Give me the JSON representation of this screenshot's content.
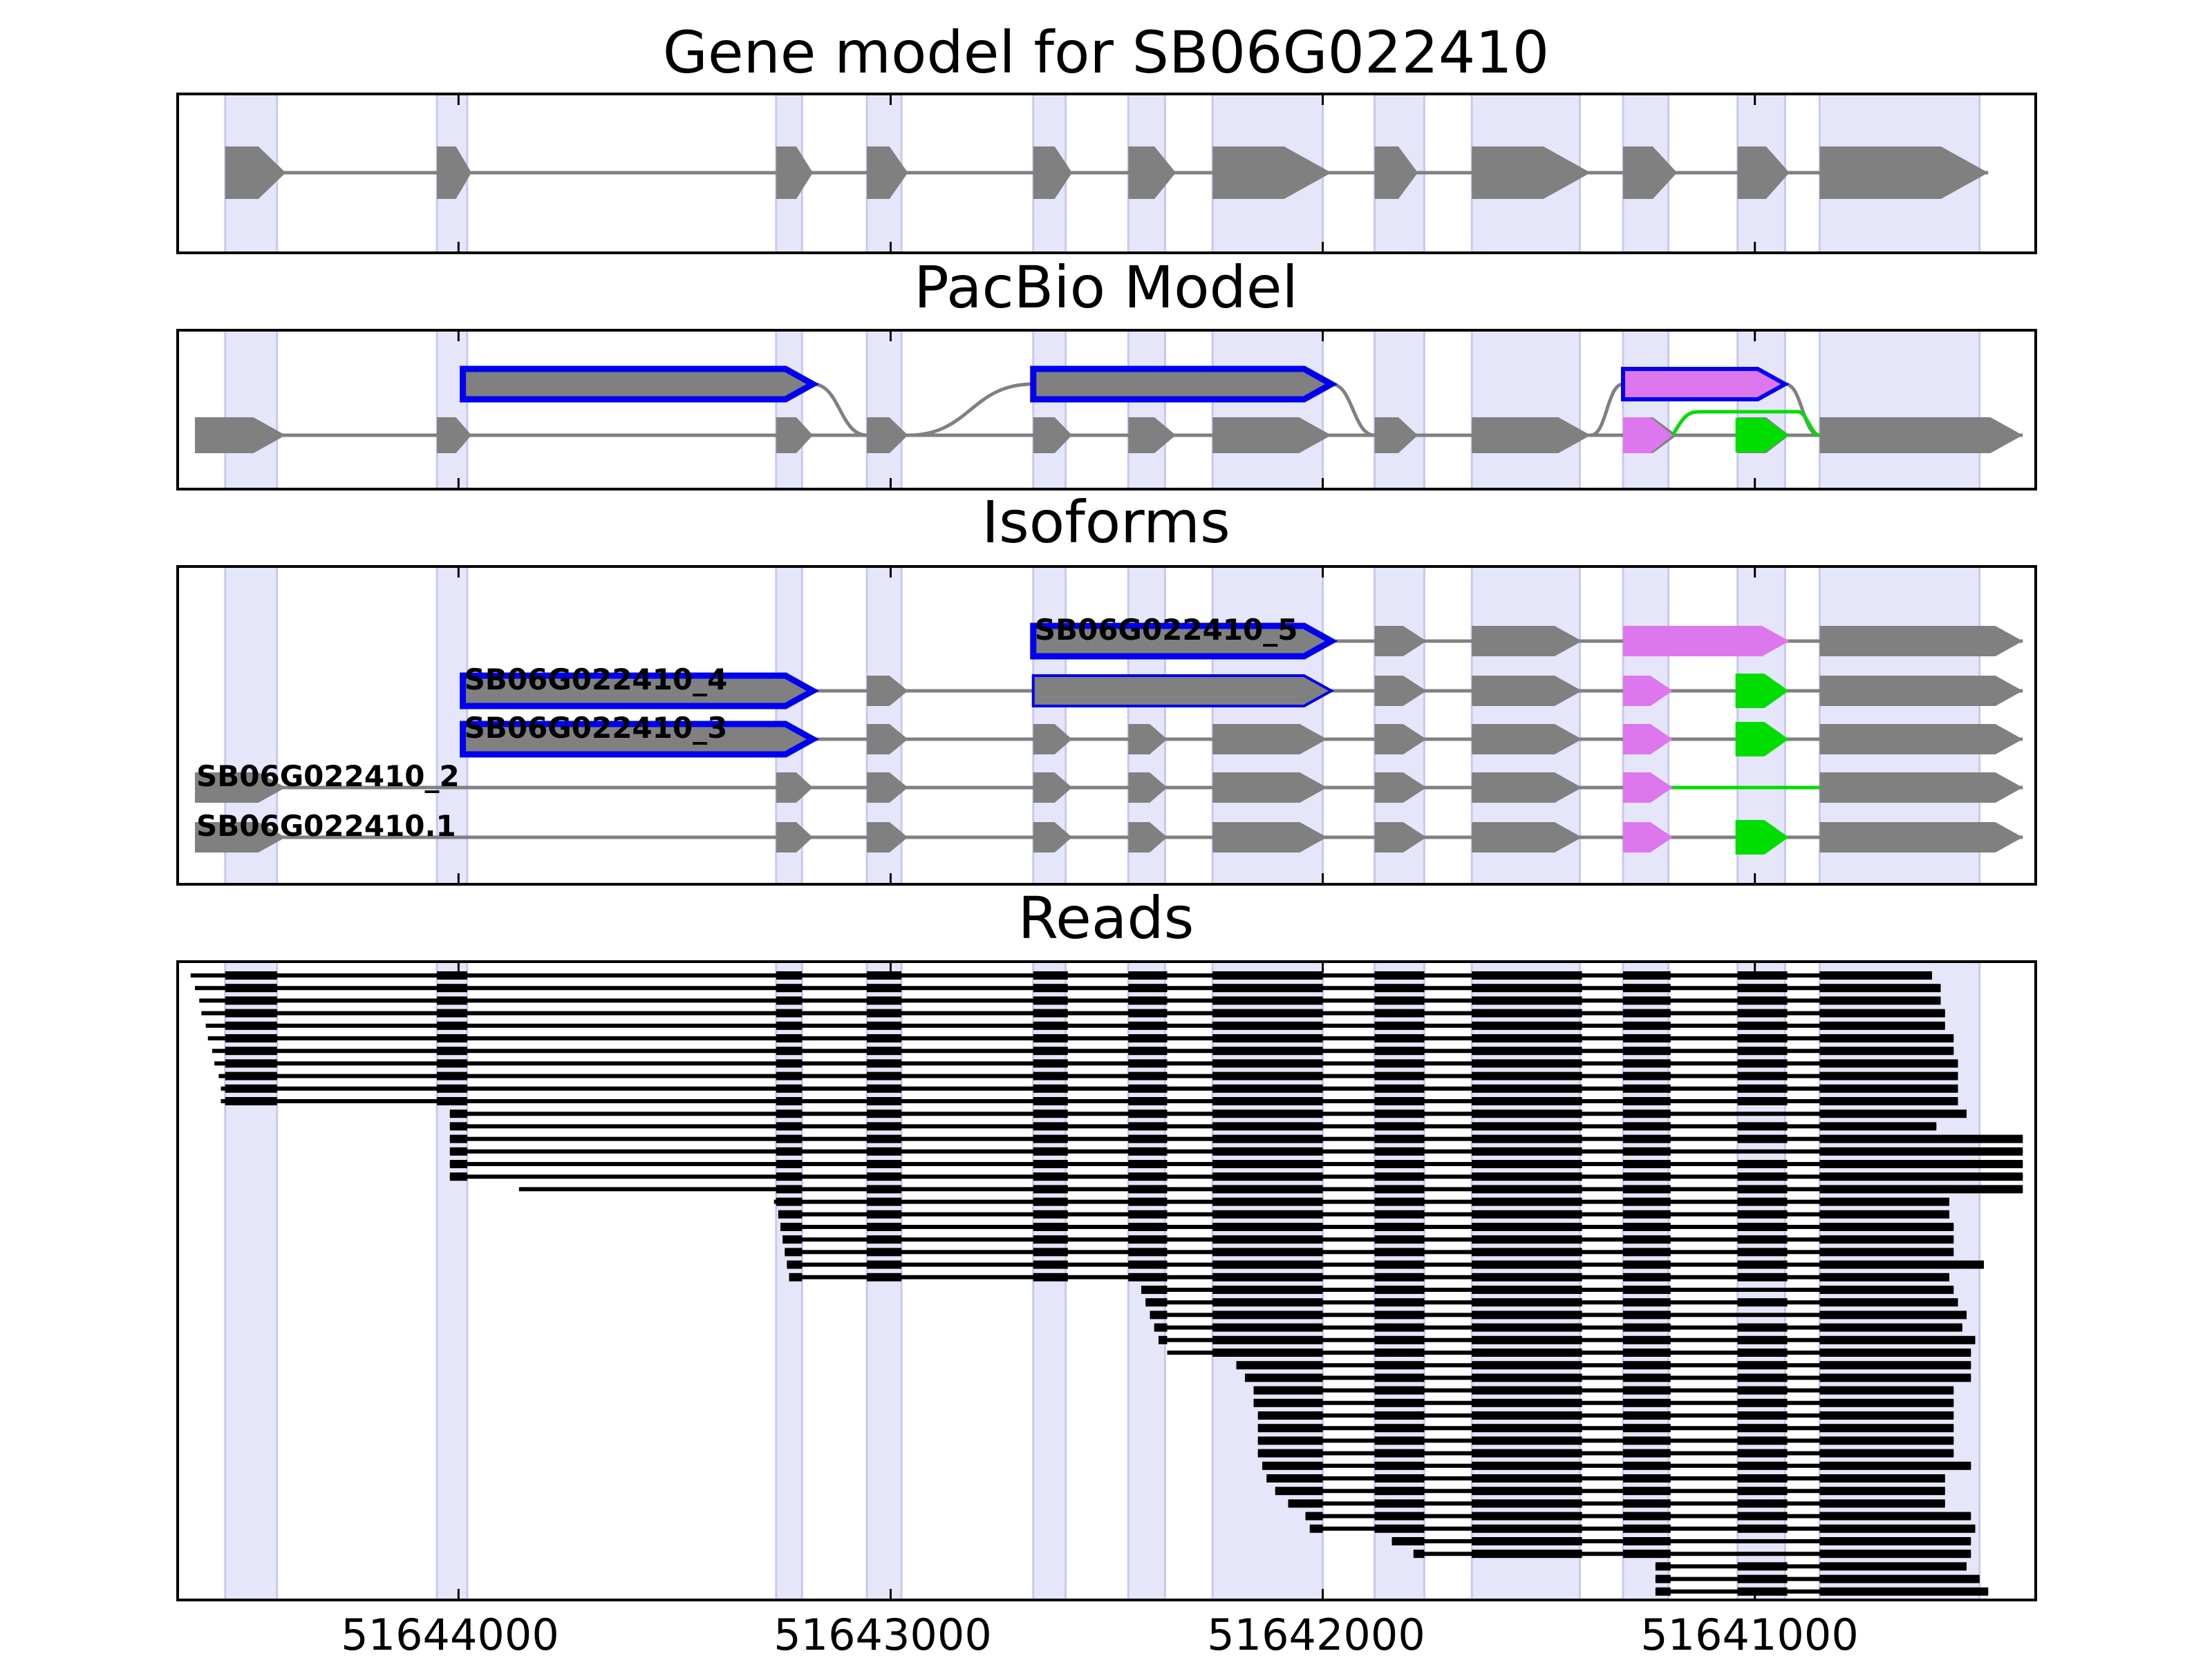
{
  "chart_data": {
    "type": "gene-track",
    "x_axis": {
      "range": [
        51644650,
        51640350
      ],
      "reversed": true,
      "ticks": [
        51644000,
        51643000,
        51642000,
        51641000
      ],
      "tick_labels": [
        "51644000",
        "51643000",
        "51642000",
        "51641000"
      ]
    },
    "highlight_regions": [
      [
        51644540,
        51644420
      ],
      [
        51644050,
        51643980
      ],
      [
        51643265,
        51643205
      ],
      [
        51643055,
        51642975
      ],
      [
        51642670,
        51642595
      ],
      [
        51642450,
        51642365
      ],
      [
        51642255,
        51642000
      ],
      [
        51641880,
        51641765
      ],
      [
        51641655,
        51641405
      ],
      [
        51641305,
        51641200
      ],
      [
        51641040,
        51640930
      ],
      [
        51640850,
        51640480
      ]
    ],
    "colors": {
      "intron": "#808080",
      "exon": "#808080",
      "highlight": "#e6e6fa",
      "blue_outline": "#0000ee",
      "alt1": "#dd77ee",
      "alt2": "#00dd00",
      "read": "#000000"
    },
    "panels": [
      {
        "title": "Gene model for SB06G022410",
        "tracks": [
          {
            "exons": [
              [
                51644540,
                51644400
              ],
              [
                51644050,
                51643970
              ],
              [
                51643265,
                51643180
              ],
              [
                51643055,
                51642960
              ],
              [
                51642670,
                51642580
              ],
              [
                51642450,
                51642340
              ],
              [
                51642255,
                51641980
              ],
              [
                51641880,
                51641780
              ],
              [
                51641655,
                51641380
              ],
              [
                51641305,
                51641180
              ],
              [
                51641040,
                51640920
              ],
              [
                51640850,
                51640460
              ]
            ]
          }
        ]
      },
      {
        "title": "PacBio Model",
        "tracks": [
          {
            "exons": [
              [
                51644610,
                51644400
              ],
              [
                51644050,
                51643970
              ],
              [
                51643265,
                51643180
              ],
              [
                51643055,
                51642960
              ],
              [
                51642670,
                51642580
              ],
              [
                51642450,
                51642340
              ],
              [
                51642255,
                51641980
              ],
              [
                51641880,
                51641780
              ],
              [
                51641655,
                51641380
              ],
              [
                51641305,
                51641180
              ],
              [
                51641040,
                51640920
              ],
              [
                51640850,
                51640380
              ]
            ]
          },
          {
            "exons": [
              [
                51643990,
                51643180
              ]
            ],
            "style": "blue"
          },
          {
            "exons": [
              [
                51642670,
                51641980
              ]
            ],
            "style": "blue"
          },
          {
            "exons": [
              [
                51641305,
                51640930
              ]
            ],
            "style": "pink"
          },
          {
            "exons": [
              [
                51641040,
                51640930
              ]
            ],
            "style": "green"
          }
        ]
      },
      {
        "title": "Isoforms",
        "tracks": [
          {
            "label": "SB06G022410_5",
            "exons": [
              [
                51642670,
                51641980
              ],
              [
                51641880,
                51641760
              ],
              [
                51641655,
                51641400
              ],
              [
                51641305,
                51640920
              ],
              [
                51640850,
                51640380
              ]
            ],
            "styles": [
              "blue",
              "gray",
              "gray",
              "pink",
              "gray"
            ]
          },
          {
            "label": "SB06G022410_4",
            "exons": [
              [
                51643990,
                51643180
              ],
              [
                51643055,
                51642960
              ],
              [
                51642670,
                51641980
              ],
              [
                51641880,
                51641760
              ],
              [
                51641655,
                51641400
              ],
              [
                51641305,
                51641190
              ],
              [
                51641040,
                51640930
              ],
              [
                51640850,
                51640380
              ]
            ],
            "styles": [
              "blue",
              "gray",
              "thinblue",
              "gray",
              "gray",
              "pink",
              "green",
              "gray"
            ]
          },
          {
            "label": "SB06G022410_3",
            "exons": [
              [
                51643990,
                51643180
              ],
              [
                51643055,
                51642960
              ],
              [
                51642670,
                51642580
              ],
              [
                51642450,
                51642360
              ],
              [
                51642255,
                51641990
              ],
              [
                51641880,
                51641760
              ],
              [
                51641655,
                51641400
              ],
              [
                51641305,
                51641190
              ],
              [
                51641040,
                51640930
              ],
              [
                51640850,
                51640380
              ]
            ],
            "styles": [
              "blue",
              "gray",
              "gray",
              "gray",
              "gray",
              "gray",
              "gray",
              "pink",
              "green",
              "gray"
            ]
          },
          {
            "label": "SB06G022410_2",
            "exons": [
              [
                51644610,
                51644400
              ],
              [
                51643265,
                51643180
              ],
              [
                51643055,
                51642960
              ],
              [
                51642670,
                51642580
              ],
              [
                51642450,
                51642360
              ],
              [
                51642255,
                51641990
              ],
              [
                51641880,
                51641760
              ],
              [
                51641655,
                51641400
              ],
              [
                51641305,
                51641190
              ],
              [
                51640850,
                51640380
              ]
            ],
            "styles": [
              "gray",
              "gray",
              "gray",
              "gray",
              "gray",
              "gray",
              "gray",
              "gray",
              "pink",
              "gray"
            ],
            "green_intron": true
          },
          {
            "label": "SB06G022410.1",
            "exons": [
              [
                51644610,
                51644400
              ],
              [
                51643265,
                51643180
              ],
              [
                51643055,
                51642960
              ],
              [
                51642670,
                51642580
              ],
              [
                51642450,
                51642360
              ],
              [
                51642255,
                51641990
              ],
              [
                51641880,
                51641760
              ],
              [
                51641655,
                51641400
              ],
              [
                51641305,
                51641190
              ],
              [
                51641040,
                51640930
              ],
              [
                51640850,
                51640380
              ]
            ],
            "styles": [
              "gray",
              "gray",
              "gray",
              "gray",
              "gray",
              "gray",
              "gray",
              "gray",
              "pink",
              "green",
              "gray"
            ]
          }
        ]
      },
      {
        "title": "Reads",
        "read_count": 50,
        "read_exon_blocks": [
          [
            51644540,
            51644420
          ],
          [
            51644050,
            51643980
          ],
          [
            51643265,
            51643205
          ],
          [
            51643055,
            51642975
          ],
          [
            51642670,
            51642590
          ],
          [
            51642450,
            51642360
          ],
          [
            51642255,
            51642000
          ],
          [
            51641880,
            51641765
          ],
          [
            51641655,
            51641400
          ],
          [
            51641305,
            51641195
          ],
          [
            51641040,
            51640925
          ],
          [
            51640850,
            51640380
          ]
        ],
        "reads": [
          {
            "start": 51644620,
            "end": 51640590,
            "skip": []
          },
          {
            "start": 51644610,
            "end": 51640570,
            "skip": []
          },
          {
            "start": 51644600,
            "end": 51640570,
            "skip": []
          },
          {
            "start": 51644595,
            "end": 51640560,
            "skip": []
          },
          {
            "start": 51644585,
            "end": 51640560,
            "skip": []
          },
          {
            "start": 51644580,
            "end": 51640540,
            "skip": []
          },
          {
            "start": 51644570,
            "end": 51640540,
            "skip": []
          },
          {
            "start": 51644565,
            "end": 51640530,
            "skip": []
          },
          {
            "start": 51644555,
            "end": 51640530,
            "skip": []
          },
          {
            "start": 51644550,
            "end": 51640530,
            "skip": []
          },
          {
            "start": 51644550,
            "end": 51640530,
            "skip": []
          },
          {
            "start": 51644020,
            "end": 51640510,
            "skip": [
              51641040
            ]
          },
          {
            "start": 51644020,
            "end": 51640580,
            "skip": []
          },
          {
            "start": 51644020,
            "end": 51640380,
            "skip": []
          },
          {
            "start": 51644020,
            "end": 51640380,
            "skip": [
              51641040
            ]
          },
          {
            "start": 51644020,
            "end": 51640380,
            "skip": []
          },
          {
            "start": 51644020,
            "end": 51640380,
            "skip": []
          },
          {
            "start": 51643860,
            "end": 51640380,
            "skip": []
          },
          {
            "start": 51643270,
            "end": 51640550,
            "skip": []
          },
          {
            "start": 51643260,
            "end": 51640550,
            "skip": []
          },
          {
            "start": 51643255,
            "end": 51640540,
            "skip": []
          },
          {
            "start": 51643250,
            "end": 51640540,
            "skip": []
          },
          {
            "start": 51643245,
            "end": 51640540,
            "skip": []
          },
          {
            "start": 51643240,
            "end": 51640470,
            "skip": []
          },
          {
            "start": 51643235,
            "end": 51640550,
            "skip": []
          },
          {
            "start": 51642420,
            "end": 51640540,
            "skip": [
              51641040
            ]
          },
          {
            "start": 51642410,
            "end": 51640530,
            "skip": []
          },
          {
            "start": 51642400,
            "end": 51640510,
            "skip": [
              51641040
            ]
          },
          {
            "start": 51642390,
            "end": 51640520,
            "skip": []
          },
          {
            "start": 51642380,
            "end": 51640490,
            "skip": []
          },
          {
            "start": 51642360,
            "end": 51640500,
            "skip": []
          },
          {
            "start": 51642200,
            "end": 51640500,
            "skip": []
          },
          {
            "start": 51642180,
            "end": 51640500,
            "skip": []
          },
          {
            "start": 51642160,
            "end": 51640540,
            "skip": []
          },
          {
            "start": 51642160,
            "end": 51640540,
            "skip": []
          },
          {
            "start": 51642150,
            "end": 51640540,
            "skip": []
          },
          {
            "start": 51642150,
            "end": 51640540,
            "skip": []
          },
          {
            "start": 51642150,
            "end": 51640540,
            "skip": []
          },
          {
            "start": 51642150,
            "end": 51640540,
            "skip": []
          },
          {
            "start": 51642140,
            "end": 51640500,
            "skip": []
          },
          {
            "start": 51642130,
            "end": 51640560,
            "skip": []
          },
          {
            "start": 51642110,
            "end": 51640560,
            "skip": []
          },
          {
            "start": 51642080,
            "end": 51640560,
            "skip": []
          },
          {
            "start": 51642040,
            "end": 51640500,
            "skip": []
          },
          {
            "start": 51642030,
            "end": 51640490,
            "skip": []
          },
          {
            "start": 51641840,
            "end": 51640500,
            "skip": [
              51641040
            ]
          },
          {
            "start": 51641790,
            "end": 51640500,
            "skip": [
              51641040
            ]
          },
          {
            "start": 51641230,
            "end": 51640510,
            "skip": []
          },
          {
            "start": 51641230,
            "end": 51640480,
            "skip": []
          },
          {
            "start": 51641230,
            "end": 51640460,
            "skip": []
          }
        ]
      }
    ]
  }
}
